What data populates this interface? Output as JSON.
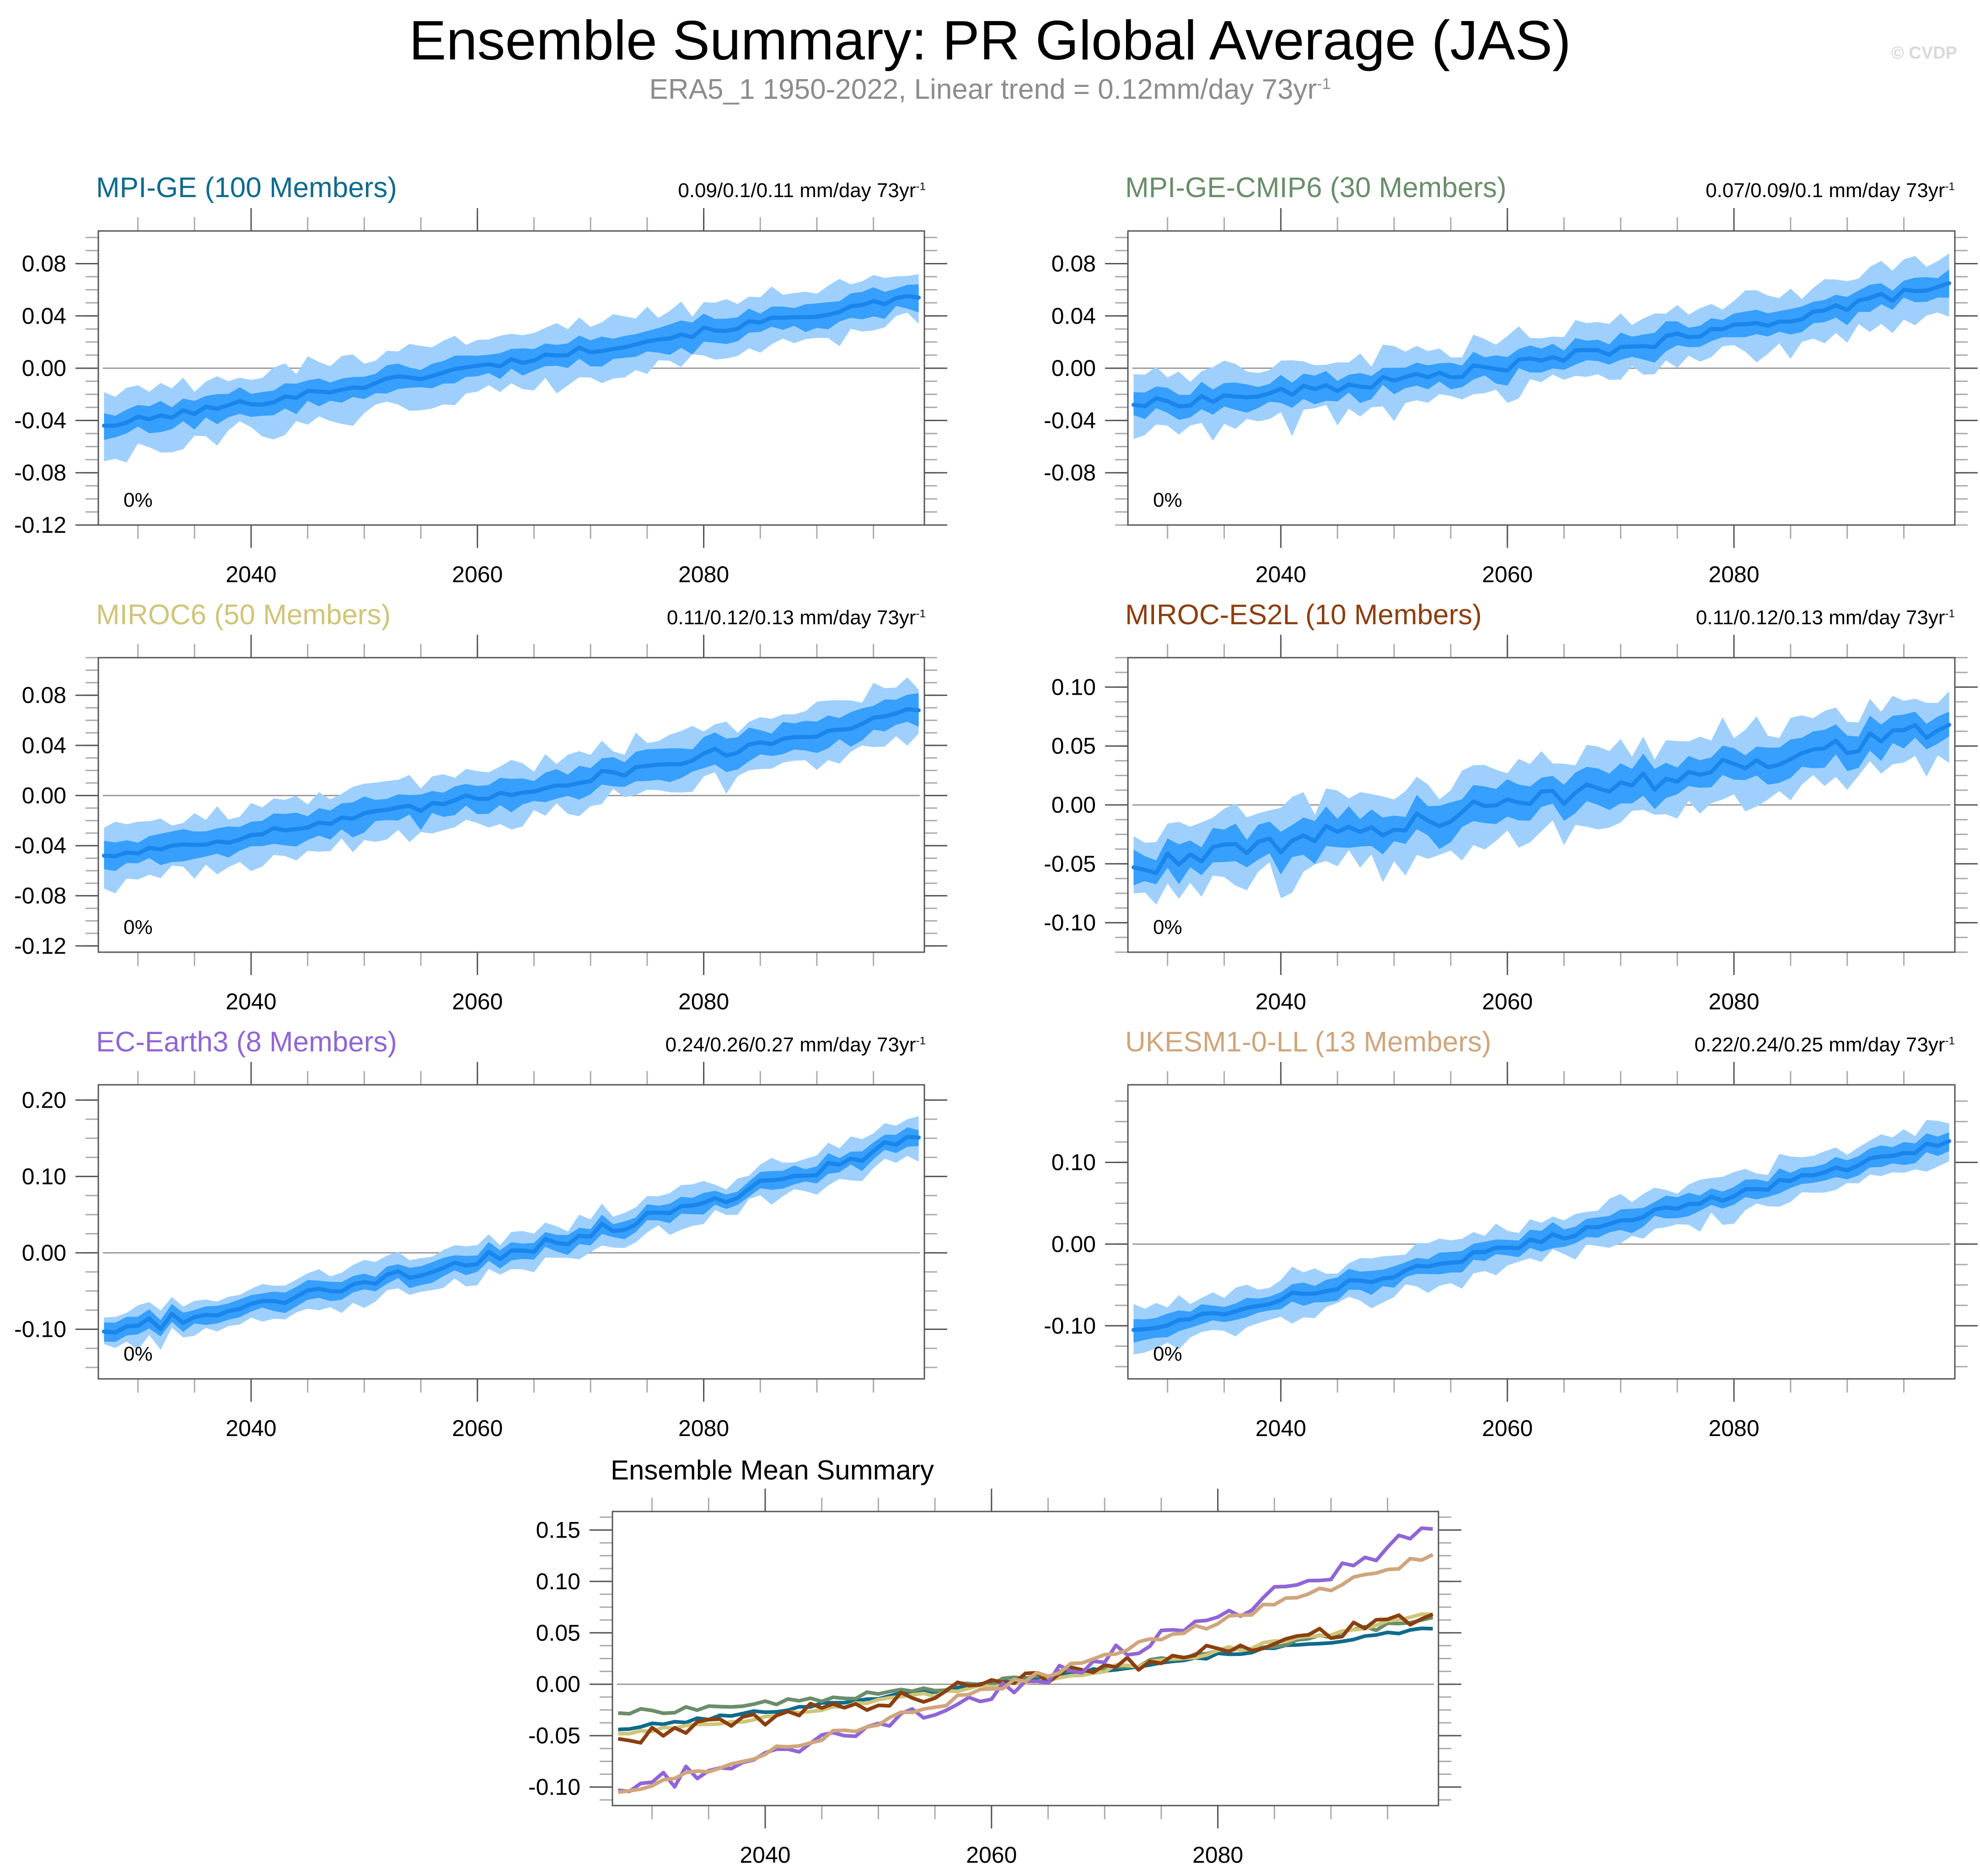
{
  "header": {
    "title": "Ensemble Summary: PR Global Average (JAS)",
    "subtitle_main": "ERA5_1 1950-2022, Linear trend = 0.12mm/day 73yr",
    "subtitle_sup": "-1",
    "watermark": "© CVDP"
  },
  "colors": {
    "band_outer": "#9fd0fd",
    "band_inner": "#379ffd",
    "mean_line": "#1a86ec",
    "zero_line": "#9a9a9a"
  },
  "chart_data": [
    {
      "type": "area",
      "id": "mpi-ge",
      "title": "MPI-GE (100 Members)",
      "title_color": "#0e6b8c",
      "trend_label": "0.09/0.1/0.11 mm/day 73yr",
      "trend_sup": "-1",
      "percent_label": "0%",
      "xlim": [
        2026.5,
        2099.5
      ],
      "ylim": [
        -0.12,
        0.105
      ],
      "yticks": [
        -0.12,
        -0.08,
        -0.04,
        0.0,
        0.04,
        0.08
      ],
      "ytick_labels": [
        "-0.12",
        "-0.08",
        "-0.04",
        "0.00",
        "0.04",
        "0.08"
      ],
      "xticks": [
        2040,
        2060,
        2080
      ],
      "xtick_labels": [
        "2040",
        "2060",
        "2080"
      ],
      "start_year": 2027,
      "mean_start": -0.044,
      "mean_end": 0.054,
      "curvature": 0.0,
      "noise": 0.003,
      "inner_halfwidth": 0.009,
      "outer_halfwidth": 0.02
    },
    {
      "type": "area",
      "id": "mpi-ge-cmip6",
      "title": "MPI-GE-CMIP6 (30 Members)",
      "title_color": "#6a8e6a",
      "trend_label": "0.07/0.09/0.1 mm/day 73yr",
      "trend_sup": "-1",
      "percent_label": "0%",
      "xlim": [
        2026.5,
        2099.5
      ],
      "ylim": [
        -0.12,
        0.105
      ],
      "yticks": [
        -0.08,
        -0.04,
        0.0,
        0.04,
        0.08
      ],
      "ytick_labels": [
        "-0.08",
        "-0.04",
        "0.00",
        "0.04",
        "0.08"
      ],
      "xticks": [
        2040,
        2060,
        2080
      ],
      "xtick_labels": [
        "2040",
        "2060",
        "2080"
      ],
      "start_year": 2027,
      "mean_start": -0.028,
      "mean_end": 0.065,
      "curvature": 0.55,
      "noise": 0.004,
      "inner_halfwidth": 0.009,
      "outer_halfwidth": 0.02
    },
    {
      "type": "area",
      "id": "miroc6",
      "title": "MIROC6 (50 Members)",
      "title_color": "#cfc57a",
      "trend_label": "0.11/0.12/0.13 mm/day 73yr",
      "trend_sup": "-1",
      "percent_label": "0%",
      "xlim": [
        2026.5,
        2099.5
      ],
      "ylim": [
        -0.125,
        0.11
      ],
      "yticks": [
        -0.12,
        -0.08,
        -0.04,
        0.0,
        0.04,
        0.08
      ],
      "ytick_labels": [
        "-0.12",
        "-0.08",
        "-0.04",
        "0.00",
        "0.04",
        "0.08"
      ],
      "xticks": [
        2040,
        2060,
        2080
      ],
      "xtick_labels": [
        "2040",
        "2060",
        "2080"
      ],
      "start_year": 2027,
      "mean_start": -0.048,
      "mean_end": 0.068,
      "curvature": 0.25,
      "noise": 0.004,
      "inner_halfwidth": 0.011,
      "outer_halfwidth": 0.021
    },
    {
      "type": "area",
      "id": "miroc-es2l",
      "title": "MIROC-ES2L (10 Members)",
      "title_color": "#8b3f10",
      "trend_label": "0.11/0.12/0.13 mm/day 73yr",
      "trend_sup": "-1",
      "percent_label": "0%",
      "xlim": [
        2026.5,
        2099.5
      ],
      "ylim": [
        -0.125,
        0.125
      ],
      "yticks": [
        -0.1,
        -0.05,
        0.0,
        0.05,
        0.1
      ],
      "ytick_labels": [
        "-0.10",
        "-0.05",
        "0.00",
        "0.05",
        "0.10"
      ],
      "xticks": [
        2040,
        2060,
        2080
      ],
      "xtick_labels": [
        "2040",
        "2060",
        "2080"
      ],
      "start_year": 2027,
      "mean_start": -0.053,
      "mean_end": 0.068,
      "curvature": 0.1,
      "noise": 0.009,
      "inner_halfwidth": 0.014,
      "outer_halfwidth": 0.028
    },
    {
      "type": "area",
      "id": "ec-earth3",
      "title": "EC-Earth3 (8 Members)",
      "title_color": "#8f66d6",
      "trend_label": "0.24/0.26/0.27 mm/day 73yr",
      "trend_sup": "-1",
      "percent_label": "0%",
      "xlim": [
        2026.5,
        2099.5
      ],
      "ylim": [
        -0.165,
        0.22
      ],
      "yticks": [
        -0.1,
        0.0,
        0.1,
        0.2
      ],
      "ytick_labels": [
        "-0.10",
        "0.00",
        "0.10",
        "0.20"
      ],
      "xticks": [
        2040,
        2060,
        2080
      ],
      "xtick_labels": [
        "2040",
        "2060",
        "2080"
      ],
      "start_year": 2027,
      "mean_start": -0.103,
      "mean_end": 0.151,
      "curvature": 0.35,
      "noise": 0.009,
      "inner_halfwidth": 0.011,
      "outer_halfwidth": 0.022
    },
    {
      "type": "area",
      "id": "ukesm1-0-ll",
      "title": "UKESM1-0-LL (13 Members)",
      "title_color": "#cfa67c",
      "trend_label": "0.22/0.24/0.25 mm/day 73yr",
      "trend_sup": "-1",
      "percent_label": "0%",
      "xlim": [
        2026.5,
        2099.5
      ],
      "ylim": [
        -0.165,
        0.195
      ],
      "yticks": [
        -0.1,
        0.0,
        0.1
      ],
      "ytick_labels": [
        "-0.10",
        "0.00",
        "0.10"
      ],
      "xticks": [
        2040,
        2060,
        2080
      ],
      "xtick_labels": [
        "2040",
        "2060",
        "2080"
      ],
      "start_year": 2027,
      "mean_start": -0.105,
      "mean_end": 0.126,
      "curvature": 0.1,
      "noise": 0.005,
      "inner_halfwidth": 0.012,
      "outer_halfwidth": 0.024
    },
    {
      "type": "line",
      "id": "ensemble-mean-summary",
      "title": "Ensemble Mean Summary",
      "xlim": [
        2026.5,
        2099.5
      ],
      "ylim": [
        -0.118,
        0.168
      ],
      "yticks": [
        -0.1,
        -0.05,
        0.0,
        0.05,
        0.1,
        0.15
      ],
      "ytick_labels": [
        "-0.10",
        "-0.05",
        "0.00",
        "0.05",
        "0.10",
        "0.15"
      ],
      "xticks": [
        2040,
        2060,
        2080
      ],
      "xtick_labels": [
        "2040",
        "2060",
        "2080"
      ],
      "series": [
        {
          "name": "MPI-GE",
          "color": "#0e6b8c",
          "start": -0.044,
          "end": 0.054,
          "curvature": 0.0,
          "noise": 0.002
        },
        {
          "name": "MPI-GE-CMIP6",
          "color": "#6a8e6a",
          "start": -0.028,
          "end": 0.065,
          "curvature": 0.55,
          "noise": 0.003
        },
        {
          "name": "MIROC6",
          "color": "#cfc57a",
          "start": -0.048,
          "end": 0.068,
          "curvature": 0.25,
          "noise": 0.003
        },
        {
          "name": "MIROC-ES2L",
          "color": "#8b3f10",
          "start": -0.053,
          "end": 0.068,
          "curvature": 0.1,
          "noise": 0.008
        },
        {
          "name": "EC-Earth3",
          "color": "#8f66d6",
          "start": -0.103,
          "end": 0.151,
          "curvature": 0.35,
          "noise": 0.009
        },
        {
          "name": "UKESM1-0-LL",
          "color": "#cfa67c",
          "start": -0.105,
          "end": 0.126,
          "curvature": 0.1,
          "noise": 0.004
        }
      ]
    }
  ]
}
